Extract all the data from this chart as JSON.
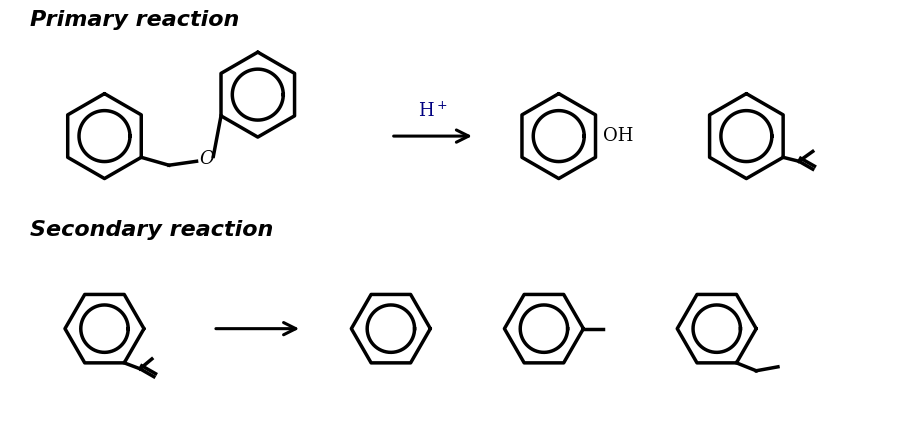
{
  "title_primary": "Primary reaction",
  "title_secondary": "Secondary reaction",
  "title_fontsize": 16,
  "bg_color": "#ffffff",
  "line_color": "#000000",
  "line_width": 2.5,
  "inner_ring_scale": 0.6
}
